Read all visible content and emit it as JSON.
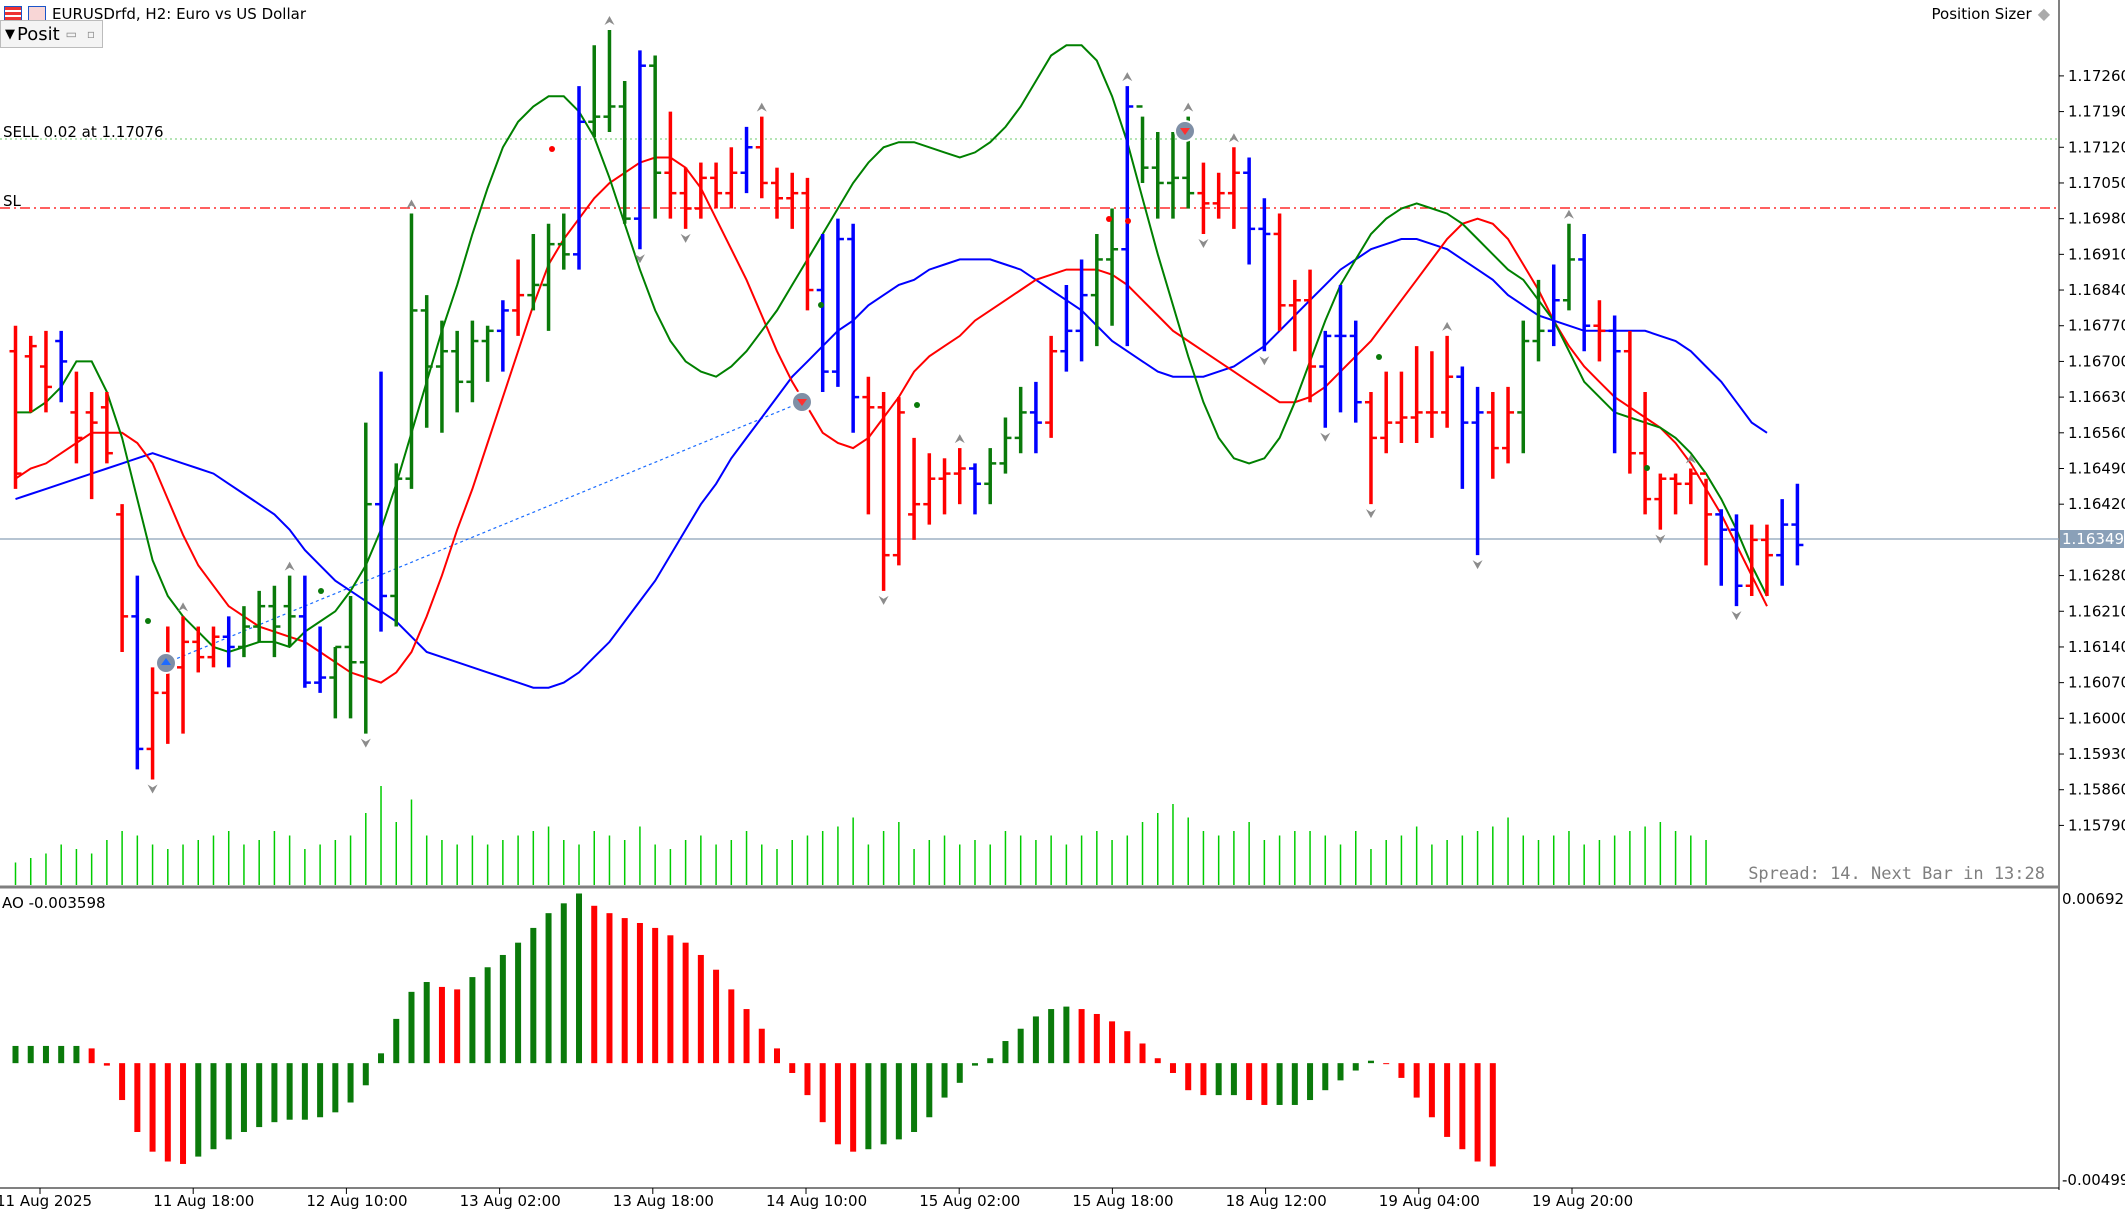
{
  "window": {
    "symbol_title": "EURUSDrfd, H2:  Euro vs US Dollar",
    "panel_title": "Posit",
    "position_sizer_label": "Position Sizer"
  },
  "order_lines": {
    "sell_label": "SELL 0.02 at 1.17076",
    "sell_price": 1.17076,
    "sl_label": "SL",
    "sl_price": 1.16962
  },
  "price_axis": {
    "labels": [
      "1.17260",
      "1.17190",
      "1.17120",
      "1.17050",
      "1.16980",
      "1.16910",
      "1.16840",
      "1.16770",
      "1.16700",
      "1.16630",
      "1.16560",
      "1.16490",
      "1.16420",
      "1.16349",
      "1.16280",
      "1.16210",
      "1.16140",
      "1.16070",
      "1.16000",
      "1.15930",
      "1.15860",
      "1.15790"
    ],
    "current_price": "1.16349"
  },
  "time_axis": {
    "labels": [
      "11 Aug 2025",
      "11 Aug 18:00",
      "12 Aug 10:00",
      "13 Aug 02:00",
      "13 Aug 18:00",
      "14 Aug 10:00",
      "15 Aug 02:00",
      "15 Aug 18:00",
      "18 Aug 12:00",
      "19 Aug 04:00",
      "19 Aug 20:00"
    ]
  },
  "status": {
    "spread_text": "Spread: 14. Next Bar in 13:28"
  },
  "ao_panel": {
    "label": "AO -0.003598",
    "axis_top": "0.006920",
    "axis_bottom": "-0.004996"
  },
  "colors": {
    "bull_bar": "#0a7a0a",
    "bear_bar": "#ff0000",
    "neutral_bar": "#0000ff",
    "ma_blue": "#0000ff",
    "ma_red": "#ff0000",
    "ma_green": "#008000",
    "sell_line": "#6ac86a",
    "sl_line": "#ff0000",
    "price_line": "#8aa0b8"
  },
  "chart_data": {
    "type": "ohlc",
    "price_range": [
      1.1573,
      1.1735
    ],
    "bars": [
      [
        1.1672,
        1.1677,
        1.1645,
        1.1648,
        "r"
      ],
      [
        1.1671,
        1.1675,
        1.166,
        1.1673,
        "r"
      ],
      [
        1.1669,
        1.1676,
        1.166,
        1.1665,
        "r"
      ],
      [
        1.1674,
        1.1676,
        1.1662,
        1.167,
        "b"
      ],
      [
        1.166,
        1.1668,
        1.165,
        1.1655,
        "r"
      ],
      [
        1.166,
        1.1664,
        1.1643,
        1.1658,
        "r"
      ],
      [
        1.1661,
        1.1664,
        1.165,
        1.1652,
        "r"
      ],
      [
        1.164,
        1.1642,
        1.1613,
        1.162,
        "r"
      ],
      [
        1.162,
        1.1628,
        1.159,
        1.1594,
        "b"
      ],
      [
        1.1594,
        1.161,
        1.1588,
        1.1605,
        "r"
      ],
      [
        1.1605,
        1.1618,
        1.1595,
        1.161,
        "r"
      ],
      [
        1.161,
        1.162,
        1.1597,
        1.1615,
        "r"
      ],
      [
        1.1615,
        1.1618,
        1.1609,
        1.1612,
        "r"
      ],
      [
        1.1612,
        1.1618,
        1.161,
        1.1616,
        "r"
      ],
      [
        1.1616,
        1.162,
        1.161,
        1.1614,
        "b"
      ],
      [
        1.1614,
        1.1622,
        1.1612,
        1.1618,
        "g"
      ],
      [
        1.1618,
        1.1625,
        1.1615,
        1.1622,
        "g"
      ],
      [
        1.1622,
        1.1626,
        1.1612,
        1.1618,
        "g"
      ],
      [
        1.1622,
        1.1628,
        1.1614,
        1.162,
        "g"
      ],
      [
        1.162,
        1.1628,
        1.1606,
        1.1607,
        "b"
      ],
      [
        1.1607,
        1.1618,
        1.1605,
        1.1608,
        "b"
      ],
      [
        1.1608,
        1.1614,
        1.16,
        1.1614,
        "g"
      ],
      [
        1.1614,
        1.1624,
        1.16,
        1.1611,
        "g"
      ],
      [
        1.1611,
        1.1658,
        1.1597,
        1.1642,
        "g"
      ],
      [
        1.1642,
        1.1668,
        1.1617,
        1.1624,
        "b"
      ],
      [
        1.1624,
        1.165,
        1.1618,
        1.1647,
        "g"
      ],
      [
        1.1647,
        1.1699,
        1.1645,
        1.168,
        "g"
      ],
      [
        1.168,
        1.1683,
        1.1657,
        1.1669,
        "g"
      ],
      [
        1.1669,
        1.1678,
        1.1656,
        1.1672,
        "g"
      ],
      [
        1.1672,
        1.1676,
        1.166,
        1.1666,
        "g"
      ],
      [
        1.1666,
        1.1678,
        1.1662,
        1.1674,
        "g"
      ],
      [
        1.1674,
        1.1677,
        1.1666,
        1.1676,
        "g"
      ],
      [
        1.1676,
        1.1682,
        1.1668,
        1.168,
        "b"
      ],
      [
        1.168,
        1.169,
        1.1675,
        1.1683,
        "r"
      ],
      [
        1.1683,
        1.1695,
        1.168,
        1.1685,
        "g"
      ],
      [
        1.1685,
        1.1697,
        1.1676,
        1.1693,
        "g"
      ],
      [
        1.1693,
        1.1699,
        1.1688,
        1.1691,
        "g"
      ],
      [
        1.1691,
        1.1724,
        1.1688,
        1.1717,
        "b"
      ],
      [
        1.1717,
        1.1732,
        1.1714,
        1.1718,
        "g"
      ],
      [
        1.1718,
        1.1735,
        1.1715,
        1.172,
        "g"
      ],
      [
        1.172,
        1.1725,
        1.1697,
        1.1698,
        "g"
      ],
      [
        1.1698,
        1.1731,
        1.1692,
        1.1728,
        "b"
      ],
      [
        1.1728,
        1.173,
        1.1698,
        1.1707,
        "g"
      ],
      [
        1.1707,
        1.1719,
        1.1698,
        1.1703,
        "r"
      ],
      [
        1.1703,
        1.1708,
        1.1696,
        1.17,
        "r"
      ],
      [
        1.17,
        1.1709,
        1.1698,
        1.1706,
        "r"
      ],
      [
        1.1706,
        1.1709,
        1.17,
        1.1703,
        "r"
      ],
      [
        1.1703,
        1.1712,
        1.17,
        1.1707,
        "r"
      ],
      [
        1.1707,
        1.1716,
        1.1703,
        1.1712,
        "b"
      ],
      [
        1.1712,
        1.1718,
        1.1702,
        1.1705,
        "r"
      ],
      [
        1.1705,
        1.1708,
        1.1698,
        1.1702,
        "r"
      ],
      [
        1.1702,
        1.1707,
        1.1696,
        1.1703,
        "r"
      ],
      [
        1.1703,
        1.1706,
        1.168,
        1.1684,
        "r"
      ],
      [
        1.1684,
        1.1695,
        1.1664,
        1.1668,
        "b"
      ],
      [
        1.1668,
        1.1698,
        1.1665,
        1.1694,
        "b"
      ],
      [
        1.1694,
        1.1697,
        1.1656,
        1.1663,
        "b"
      ],
      [
        1.1663,
        1.1667,
        1.164,
        1.1661,
        "r"
      ],
      [
        1.1661,
        1.1664,
        1.1625,
        1.1632,
        "r"
      ],
      [
        1.1632,
        1.1663,
        1.163,
        1.166,
        "r"
      ],
      [
        1.164,
        1.1655,
        1.1635,
        1.1642,
        "r"
      ],
      [
        1.1642,
        1.1652,
        1.1638,
        1.1647,
        "r"
      ],
      [
        1.1647,
        1.1651,
        1.164,
        1.1648,
        "r"
      ],
      [
        1.1648,
        1.1653,
        1.1642,
        1.1649,
        "r"
      ],
      [
        1.1649,
        1.165,
        1.164,
        1.1646,
        "b"
      ],
      [
        1.1646,
        1.1653,
        1.1642,
        1.165,
        "g"
      ],
      [
        1.165,
        1.1659,
        1.1648,
        1.1655,
        "g"
      ],
      [
        1.1655,
        1.1665,
        1.1652,
        1.166,
        "g"
      ],
      [
        1.166,
        1.1666,
        1.1652,
        1.1658,
        "b"
      ],
      [
        1.1658,
        1.1675,
        1.1655,
        1.1672,
        "r"
      ],
      [
        1.1672,
        1.1685,
        1.1668,
        1.1676,
        "b"
      ],
      [
        1.1676,
        1.169,
        1.167,
        1.1683,
        "b"
      ],
      [
        1.1683,
        1.1695,
        1.1673,
        1.169,
        "g"
      ],
      [
        1.169,
        1.17,
        1.1677,
        1.1692,
        "g"
      ],
      [
        1.1692,
        1.1724,
        1.1673,
        1.172,
        "b"
      ],
      [
        1.172,
        1.1718,
        1.1705,
        1.1708,
        "g"
      ],
      [
        1.1708,
        1.1715,
        1.1698,
        1.1705,
        "g"
      ],
      [
        1.1705,
        1.1715,
        1.1698,
        1.1706,
        "g"
      ],
      [
        1.1706,
        1.1718,
        1.17,
        1.1703,
        "g"
      ],
      [
        1.1703,
        1.1709,
        1.1695,
        1.1701,
        "r"
      ],
      [
        1.1701,
        1.1707,
        1.1698,
        1.1703,
        "r"
      ],
      [
        1.1703,
        1.1712,
        1.1696,
        1.1707,
        "r"
      ],
      [
        1.1707,
        1.171,
        1.1689,
        1.1696,
        "b"
      ],
      [
        1.1696,
        1.1702,
        1.1672,
        1.1695,
        "b"
      ],
      [
        1.1695,
        1.1699,
        1.1676,
        1.1681,
        "r"
      ],
      [
        1.1681,
        1.1686,
        1.1672,
        1.1682,
        "r"
      ],
      [
        1.1682,
        1.1688,
        1.1662,
        1.1669,
        "r"
      ],
      [
        1.1669,
        1.1676,
        1.1657,
        1.1675,
        "b"
      ],
      [
        1.1675,
        1.1685,
        1.166,
        1.1675,
        "b"
      ],
      [
        1.1675,
        1.1678,
        1.1658,
        1.1662,
        "b"
      ],
      [
        1.1662,
        1.1664,
        1.1642,
        1.1655,
        "r"
      ],
      [
        1.1655,
        1.1668,
        1.1652,
        1.1658,
        "r"
      ],
      [
        1.1658,
        1.1668,
        1.1654,
        1.1659,
        "r"
      ],
      [
        1.1659,
        1.1673,
        1.1654,
        1.166,
        "r"
      ],
      [
        1.166,
        1.1672,
        1.1655,
        1.166,
        "r"
      ],
      [
        1.166,
        1.1675,
        1.1657,
        1.1667,
        "r"
      ],
      [
        1.1667,
        1.1669,
        1.1645,
        1.1658,
        "b"
      ],
      [
        1.1658,
        1.1665,
        1.1632,
        1.166,
        "b"
      ],
      [
        1.166,
        1.1664,
        1.1647,
        1.1653,
        "r"
      ],
      [
        1.1653,
        1.1665,
        1.165,
        1.166,
        "r"
      ],
      [
        1.166,
        1.1678,
        1.1652,
        1.1674,
        "g"
      ],
      [
        1.1674,
        1.1686,
        1.167,
        1.1676,
        "g"
      ],
      [
        1.1676,
        1.1689,
        1.1673,
        1.1682,
        "b"
      ],
      [
        1.1682,
        1.1697,
        1.168,
        1.169,
        "g"
      ],
      [
        1.169,
        1.1695,
        1.1672,
        1.1677,
        "b"
      ],
      [
        1.1677,
        1.1682,
        1.167,
        1.1676,
        "r"
      ],
      [
        1.1676,
        1.1679,
        1.1652,
        1.1672,
        "b"
      ],
      [
        1.1672,
        1.1676,
        1.1648,
        1.1652,
        "r"
      ],
      [
        1.1652,
        1.1664,
        1.164,
        1.1643,
        "r"
      ],
      [
        1.1643,
        1.1648,
        1.1637,
        1.1647,
        "r"
      ],
      [
        1.1647,
        1.1648,
        1.164,
        1.1646,
        "r"
      ],
      [
        1.1646,
        1.1649,
        1.1642,
        1.1648,
        "r"
      ],
      [
        1.1648,
        1.1647,
        1.163,
        1.164,
        "r"
      ],
      [
        1.164,
        1.1641,
        1.1626,
        1.1637,
        "b"
      ],
      [
        1.1637,
        1.164,
        1.1622,
        1.1626,
        "b"
      ],
      [
        1.1626,
        1.1638,
        1.1624,
        1.1635,
        "r"
      ],
      [
        1.1635,
        1.1638,
        1.1624,
        1.1632,
        "r"
      ],
      [
        1.1632,
        1.1643,
        1.1626,
        1.1638,
        "b"
      ],
      [
        1.1638,
        1.1646,
        1.163,
        1.1634,
        "b"
      ]
    ],
    "ma_blue": [
      1.1643,
      1.1644,
      1.1645,
      1.1646,
      1.1647,
      1.1648,
      1.1649,
      1.165,
      1.1651,
      1.1652,
      1.1651,
      1.165,
      1.1649,
      1.1648,
      1.1646,
      1.1644,
      1.1642,
      1.164,
      1.1637,
      1.1633,
      1.163,
      1.1627,
      1.1625,
      1.1623,
      1.1621,
      1.1619,
      1.1616,
      1.1613,
      1.1612,
      1.1611,
      1.161,
      1.1609,
      1.1608,
      1.1607,
      1.1606,
      1.1606,
      1.1607,
      1.1609,
      1.1612,
      1.1615,
      1.1619,
      1.1623,
      1.1627,
      1.1632,
      1.1637,
      1.1642,
      1.1646,
      1.1651,
      1.1655,
      1.1659,
      1.1663,
      1.1667,
      1.167,
      1.1673,
      1.1676,
      1.1678,
      1.1681,
      1.1683,
      1.1685,
      1.1686,
      1.1688,
      1.1689,
      1.169,
      1.169,
      1.169,
      1.1689,
      1.1688,
      1.1686,
      1.1684,
      1.1682,
      1.168,
      1.1677,
      1.1674,
      1.1672,
      1.167,
      1.1668,
      1.1667,
      1.1667,
      1.1667,
      1.1668,
      1.1669,
      1.1671,
      1.1673,
      1.1676,
      1.1679,
      1.1682,
      1.1685,
      1.1688,
      1.169,
      1.1692,
      1.1693,
      1.1694,
      1.1694,
      1.1693,
      1.1692,
      1.169,
      1.1688,
      1.1686,
      1.1683,
      1.1681,
      1.1679,
      1.1678,
      1.1677,
      1.1676,
      1.1676,
      1.1676,
      1.1676,
      1.1676,
      1.1675,
      1.1674,
      1.1672,
      1.1669,
      1.1666,
      1.1662,
      1.1658,
      1.1656
    ],
    "ma_red": [
      1.1647,
      1.1649,
      1.165,
      1.1652,
      1.1654,
      1.1656,
      1.1656,
      1.1656,
      1.1654,
      1.165,
      1.1643,
      1.1636,
      1.163,
      1.1626,
      1.1622,
      1.162,
      1.1618,
      1.1617,
      1.1616,
      1.1615,
      1.1613,
      1.1611,
      1.1609,
      1.1608,
      1.1607,
      1.1609,
      1.1613,
      1.162,
      1.1628,
      1.1637,
      1.1645,
      1.1654,
      1.1663,
      1.1672,
      1.1681,
      1.1689,
      1.1694,
      1.1698,
      1.1702,
      1.1705,
      1.1707,
      1.1709,
      1.171,
      1.171,
      1.1708,
      1.1704,
      1.1698,
      1.1692,
      1.1686,
      1.1679,
      1.1672,
      1.1666,
      1.1661,
      1.1656,
      1.1654,
      1.1653,
      1.1655,
      1.1659,
      1.1663,
      1.1668,
      1.1671,
      1.1673,
      1.1675,
      1.1678,
      1.168,
      1.1682,
      1.1684,
      1.1686,
      1.1687,
      1.1688,
      1.1688,
      1.1688,
      1.1687,
      1.1685,
      1.1682,
      1.1679,
      1.1676,
      1.1674,
      1.1672,
      1.167,
      1.1668,
      1.1666,
      1.1664,
      1.1662,
      1.1662,
      1.1663,
      1.1665,
      1.1668,
      1.1671,
      1.1674,
      1.1678,
      1.1682,
      1.1686,
      1.169,
      1.1694,
      1.1697,
      1.1698,
      1.1697,
      1.1694,
      1.1689,
      1.1684,
      1.1678,
      1.1673,
      1.1669,
      1.1666,
      1.1663,
      1.1661,
      1.1659,
      1.1657,
      1.1654,
      1.165,
      1.1645,
      1.164,
      1.1634,
      1.1628,
      1.1622
    ],
    "ma_green": [
      1.166,
      1.166,
      1.1662,
      1.1665,
      1.167,
      1.167,
      1.1664,
      1.1655,
      1.1643,
      1.1631,
      1.1624,
      1.162,
      1.1617,
      1.1614,
      1.1613,
      1.1614,
      1.1615,
      1.1615,
      1.1614,
      1.1617,
      1.1619,
      1.1621,
      1.1625,
      1.163,
      1.1637,
      1.1646,
      1.1656,
      1.1666,
      1.1676,
      1.1685,
      1.1695,
      1.1704,
      1.1712,
      1.1717,
      1.172,
      1.1722,
      1.1722,
      1.1719,
      1.1714,
      1.1706,
      1.1697,
      1.1688,
      1.168,
      1.1674,
      1.167,
      1.1668,
      1.1667,
      1.1669,
      1.1672,
      1.1676,
      1.168,
      1.1685,
      1.169,
      1.1695,
      1.17,
      1.1705,
      1.1709,
      1.1712,
      1.1713,
      1.1713,
      1.1712,
      1.1711,
      1.171,
      1.1711,
      1.1713,
      1.1716,
      1.172,
      1.1725,
      1.173,
      1.1732,
      1.1732,
      1.1729,
      1.1722,
      1.1713,
      1.1702,
      1.1691,
      1.1681,
      1.1671,
      1.1662,
      1.1655,
      1.1651,
      1.165,
      1.1651,
      1.1655,
      1.1662,
      1.167,
      1.1678,
      1.1685,
      1.169,
      1.1695,
      1.1698,
      1.17,
      1.1701,
      1.17,
      1.1699,
      1.1697,
      1.1694,
      1.1691,
      1.1688,
      1.1686,
      1.1682,
      1.1678,
      1.1672,
      1.1666,
      1.1663,
      1.166,
      1.1659,
      1.1658,
      1.1657,
      1.1655,
      1.1652,
      1.1648,
      1.1643,
      1.1637,
      1.163,
      1.1624
    ],
    "volume": [
      5,
      6,
      7,
      9,
      8,
      7,
      10,
      12,
      11,
      9,
      8,
      9,
      10,
      11,
      12,
      9,
      10,
      12,
      11,
      8,
      9,
      10,
      11,
      16,
      22,
      14,
      19,
      11,
      10,
      9,
      11,
      9,
      10,
      11,
      12,
      13,
      10,
      9,
      12,
      11,
      10,
      13,
      9,
      8,
      10,
      11,
      9,
      10,
      12,
      9,
      8,
      10,
      11,
      12,
      13,
      15,
      9,
      12,
      14,
      8,
      10,
      11,
      9,
      10,
      9,
      12,
      11,
      10,
      11,
      9,
      11,
      12,
      10,
      11,
      14,
      16,
      18,
      15,
      12,
      11,
      12,
      14,
      10,
      11,
      12,
      12,
      11,
      9,
      12,
      8,
      10,
      11,
      13,
      9,
      10,
      11,
      12,
      13,
      15,
      11,
      10,
      11,
      12,
      9,
      10,
      11,
      12,
      13,
      14,
      12,
      11,
      10
    ],
    "ao": [
      0.0007,
      0.0007,
      0.0007,
      0.0007,
      0.0007,
      0.0006,
      -0.0001,
      -0.0015,
      -0.0028,
      -0.0036,
      -0.004,
      -0.0041,
      -0.0038,
      -0.0035,
      -0.0031,
      -0.0028,
      -0.0026,
      -0.0024,
      -0.0023,
      -0.0023,
      -0.0022,
      -0.002,
      -0.0016,
      -0.0009,
      0.0004,
      0.0018,
      0.0029,
      0.0033,
      0.0031,
      0.003,
      0.0035,
      0.0039,
      0.0044,
      0.0049,
      0.0055,
      0.0061,
      0.0065,
      0.0069,
      0.0064,
      0.0061,
      0.0059,
      0.0057,
      0.0055,
      0.0052,
      0.0049,
      0.0044,
      0.0038,
      0.003,
      0.0022,
      0.0014,
      0.0006,
      -0.0004,
      -0.0013,
      -0.0024,
      -0.0033,
      -0.0036,
      -0.0035,
      -0.0033,
      -0.0031,
      -0.0028,
      -0.0022,
      -0.0014,
      -0.0008,
      -0.0001,
      0.0002,
      0.0009,
      0.0014,
      0.0019,
      0.0022,
      0.0023,
      0.0022,
      0.002,
      0.0017,
      0.0013,
      0.0008,
      0.0002,
      -0.0004,
      -0.0011,
      -0.0013,
      -0.0013,
      -0.0013,
      -0.0015,
      -0.0017,
      -0.0017,
      -0.0017,
      -0.0015,
      -0.0011,
      -0.0007,
      -0.0003,
      0.0001,
      0.0,
      -0.0006,
      -0.0014,
      -0.0022,
      -0.003,
      -0.0035,
      -0.004,
      -0.0042
    ]
  }
}
